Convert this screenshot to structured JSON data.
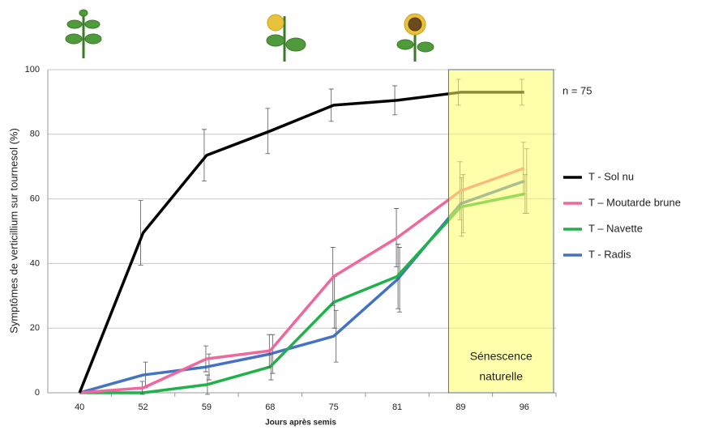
{
  "chart_data": {
    "type": "line",
    "y_label": "Symptômes de verticillium sur tournesol (%)",
    "x_label": "Jours après semis",
    "categories": [
      "40",
      "52",
      "59",
      "68",
      "75",
      "81",
      "89",
      "96"
    ],
    "ylim": [
      0,
      100
    ],
    "yticks": [
      0,
      20,
      40,
      60,
      80,
      100
    ],
    "grid": true,
    "annotations": {
      "n": "n = 75",
      "zone": "Sénescence",
      "zone2": "naturelle"
    },
    "series": [
      {
        "name": "T - Sol nu",
        "color": "#000000",
        "values": [
          0,
          49.5,
          73.5,
          81,
          89,
          90.5,
          93,
          93
        ],
        "errors": [
          0,
          10,
          8,
          7,
          5,
          4.5,
          4,
          4
        ]
      },
      {
        "name": "T – Moutarde brune",
        "color": "#f0679e",
        "values": [
          0,
          1.5,
          10.5,
          13,
          36,
          48,
          62.5,
          69.5
        ],
        "errors": [
          0,
          2,
          4,
          5,
          9,
          9,
          9,
          8
        ]
      },
      {
        "name": "T – Navette",
        "color": "#1fb24a",
        "values": [
          0,
          0,
          2.5,
          8,
          28,
          36,
          57.5,
          61.5
        ],
        "errors": [
          0,
          0,
          3,
          4,
          8,
          10,
          9,
          6
        ]
      },
      {
        "name": "T - Radis",
        "color": "#4472c4",
        "values": [
          0,
          5.5,
          8,
          12,
          17.5,
          35,
          58.5,
          65.5
        ],
        "errors": [
          0,
          4,
          4,
          6,
          8,
          10,
          9,
          10
        ]
      }
    ]
  }
}
